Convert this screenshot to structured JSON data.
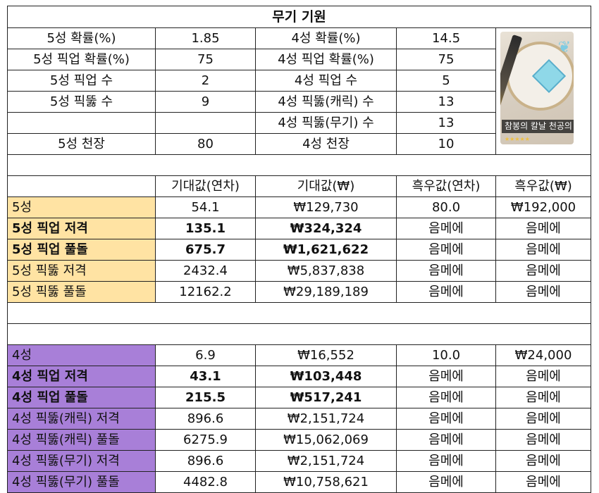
{
  "title": "무기 기원",
  "summary": {
    "rows": [
      [
        "5성 확률(%)",
        "1.85",
        "4성 확률(%)",
        "14.5"
      ],
      [
        "5성 픽업 확률(%)",
        "75",
        "4성 픽업 확률(%)",
        "75"
      ],
      [
        "5성 픽업 수",
        "2",
        "4성 픽업 수",
        "5"
      ],
      [
        "5성 픽뚫 수",
        "9",
        "4성 픽뚫(캐릭) 수",
        "13"
      ],
      [
        "",
        "",
        "4성 픽뚫(무기) 수",
        "13"
      ],
      [
        "5성 천장",
        "80",
        "4성 천장",
        "10"
      ]
    ],
    "image_caption": "참봉의 칼날 천공의 두루마리",
    "image_stars": "★★★★★"
  },
  "headers": [
    "기대값(연차)",
    "기대값(₩)",
    "흑우값(연차)",
    "흑우값(₩)"
  ],
  "five_star": [
    {
      "label": "5성",
      "pulls": "54.1",
      "won": "₩129,730",
      "whale_pulls": "80.0",
      "whale_won": "₩192,000",
      "bold": false
    },
    {
      "label": "5성 픽업 저격",
      "pulls": "135.1",
      "won": "₩324,324",
      "whale_pulls": "음메에",
      "whale_won": "음메에",
      "bold": true
    },
    {
      "label": "5성 픽업 풀돌",
      "pulls": "675.7",
      "won": "₩1,621,622",
      "whale_pulls": "음메에",
      "whale_won": "음메에",
      "bold": true
    },
    {
      "label": "5성 픽뚫 저격",
      "pulls": "2432.4",
      "won": "₩5,837,838",
      "whale_pulls": "음메에",
      "whale_won": "음메에",
      "bold": false
    },
    {
      "label": "5성 픽뚫 풀돌",
      "pulls": "12162.2",
      "won": "₩29,189,189",
      "whale_pulls": "음메에",
      "whale_won": "음메에",
      "bold": false
    }
  ],
  "four_star": [
    {
      "label": "4성",
      "pulls": "6.9",
      "won": "₩16,552",
      "whale_pulls": "10.0",
      "whale_won": "₩24,000",
      "bold": false
    },
    {
      "label": "4성 픽업 저격",
      "pulls": "43.1",
      "won": "₩103,448",
      "whale_pulls": "음메에",
      "whale_won": "음메에",
      "bold": true
    },
    {
      "label": "4성 픽업 풀돌",
      "pulls": "215.5",
      "won": "₩517,241",
      "whale_pulls": "음메에",
      "whale_won": "음메에",
      "bold": true
    },
    {
      "label": "4성 픽뚫(캐릭) 저격",
      "pulls": "896.6",
      "won": "₩2,151,724",
      "whale_pulls": "음메에",
      "whale_won": "음메에",
      "bold": false
    },
    {
      "label": "4성 픽뚫(캐릭) 풀돌",
      "pulls": "6275.9",
      "won": "₩15,062,069",
      "whale_pulls": "음메에",
      "whale_won": "음메에",
      "bold": false
    },
    {
      "label": "4성 픽뚫(무기) 저격",
      "pulls": "896.6",
      "won": "₩2,151,724",
      "whale_pulls": "음메에",
      "whale_won": "음메에",
      "bold": false
    },
    {
      "label": "4성 픽뚫(무기) 풀돌",
      "pulls": "4482.8",
      "won": "₩10,758,621",
      "whale_pulls": "음메에",
      "whale_won": "음메에",
      "bold": false
    }
  ],
  "colors": {
    "five_star_label_bg": "#FFE3A3",
    "four_star_label_bg": "#A87FD8"
  }
}
